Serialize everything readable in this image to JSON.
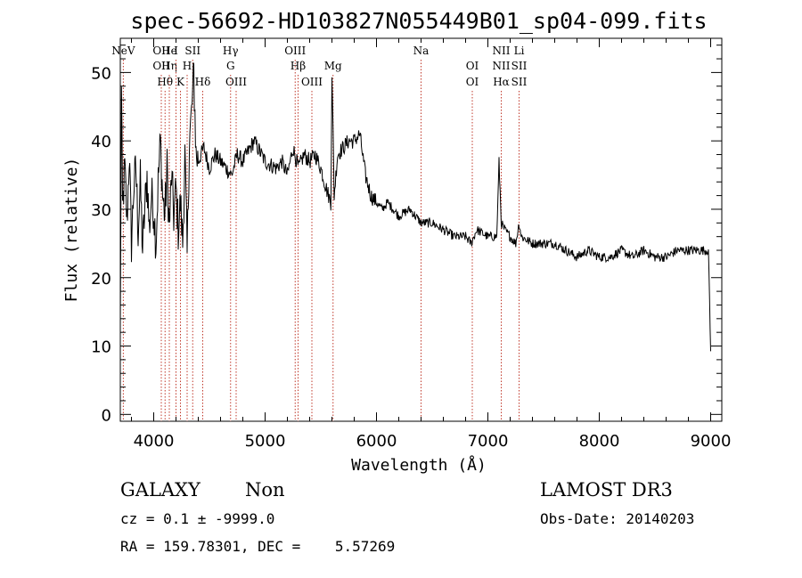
{
  "chart_data": {
    "type": "line",
    "title": "spec-56692-HD103827N055449B01_sp04-099.fits",
    "xlabel": "Wavelength (Å)",
    "ylabel": "Flux (relative)",
    "xlim": [
      3700,
      9100
    ],
    "ylim": [
      -1,
      55
    ],
    "x_ticks": [
      4000,
      5000,
      6000,
      7000,
      8000,
      9000
    ],
    "y_ticks": [
      0,
      10,
      20,
      30,
      40,
      50
    ],
    "grid": false,
    "series": [
      {
        "x": [
          3700,
          3710,
          3720,
          3740,
          3760,
          3780,
          3800,
          3820,
          3840,
          3860,
          3880,
          3900,
          3920,
          3940,
          3960,
          3980,
          4000,
          4020,
          4040,
          4060,
          4080,
          4100,
          4120,
          4140,
          4160,
          4180,
          4200,
          4220,
          4240,
          4260,
          4280,
          4300,
          4320,
          4340,
          4360,
          4380,
          4400,
          4450,
          4500,
          4550,
          4600,
          4650,
          4700,
          4750,
          4800,
          4900,
          5000,
          5100,
          5150,
          5200,
          5250,
          5300,
          5350,
          5400,
          5450,
          5500,
          5550,
          5590,
          5600,
          5620,
          5650,
          5700,
          5750,
          5800,
          5850,
          5900,
          5950,
          6000,
          6050,
          6100,
          6200,
          6300,
          6400,
          6500,
          6600,
          6700,
          6800,
          6850,
          6900,
          7000,
          7080,
          7100,
          7120,
          7150,
          7200,
          7250,
          7280,
          7300,
          7400,
          7500,
          7600,
          7700,
          7800,
          7900,
          8000,
          8100,
          8200,
          8300,
          8400,
          8500,
          8600,
          8700,
          8800,
          8900,
          8950,
          8980,
          9000
        ],
        "y": [
          12,
          47,
          30,
          36,
          28,
          38,
          25,
          33,
          36,
          27,
          34,
          24,
          30,
          35,
          27,
          32,
          30,
          25,
          34,
          40,
          32,
          29,
          36,
          27,
          35,
          29,
          33,
          27,
          31,
          25,
          38,
          23,
          40,
          44,
          50,
          38,
          37,
          39,
          36,
          38,
          37,
          36,
          35,
          38,
          37,
          40,
          37,
          36,
          37,
          35,
          39,
          36,
          38,
          37,
          38,
          36,
          33,
          31,
          50,
          32,
          38,
          39,
          40,
          40,
          41,
          35,
          32,
          31,
          30,
          31,
          29,
          30,
          28,
          28,
          27,
          26,
          26,
          25,
          27,
          26,
          26,
          37,
          28,
          27,
          26,
          25,
          28,
          26,
          25,
          25,
          25,
          24,
          23,
          24,
          23,
          23,
          24,
          23,
          24,
          23,
          23,
          24,
          24,
          24,
          24,
          24,
          9
        ]
      }
    ],
    "line_markers": [
      {
        "wavelength": 3727,
        "labels": [
          "NeV"
        ]
      },
      {
        "wavelength": 4068,
        "labels": [
          "OII",
          "OII"
        ]
      },
      {
        "wavelength": 4102,
        "labels": [
          "",
          "",
          "Hθ"
        ]
      },
      {
        "wavelength": 4140,
        "labels": [
          "He",
          "Hη"
        ]
      },
      {
        "wavelength": 4200,
        "labels": [
          "I"
        ]
      },
      {
        "wavelength": 4240,
        "labels": [
          "",
          "",
          "K"
        ]
      },
      {
        "wavelength": 4300,
        "labels": [
          "",
          "H"
        ]
      },
      {
        "wavelength": 4350,
        "labels": [
          "SII"
        ]
      },
      {
        "wavelength": 4440,
        "labels": [
          "",
          "",
          "Hδ"
        ]
      },
      {
        "wavelength": 4690,
        "labels": [
          "Hγ",
          "G"
        ]
      },
      {
        "wavelength": 4740,
        "labels": [
          "",
          "",
          "OIII"
        ]
      },
      {
        "wavelength": 5270,
        "labels": [
          "OIII"
        ]
      },
      {
        "wavelength": 5296,
        "labels": [
          "",
          "Hβ"
        ]
      },
      {
        "wavelength": 5420,
        "labels": [
          "",
          "",
          "OIII"
        ]
      },
      {
        "wavelength": 5610,
        "labels": [
          "",
          "Mg"
        ]
      },
      {
        "wavelength": 6400,
        "labels": [
          "Na"
        ]
      },
      {
        "wavelength": 6860,
        "labels": [
          "",
          "OI",
          "OI"
        ]
      },
      {
        "wavelength": 7120,
        "labels": [
          "NII",
          "NII",
          "Hα"
        ]
      },
      {
        "wavelength": 7280,
        "labels": [
          "Li",
          "SII",
          "SII"
        ]
      }
    ]
  },
  "info": {
    "object_class": "GALAXY",
    "subclass": "Non",
    "survey": "LAMOST DR3",
    "redshift": "cz = 0.1 ± -9999.0",
    "obs_date": "Obs-Date: 20140203",
    "coords": "RA = 159.78301, DEC =    5.57269"
  }
}
